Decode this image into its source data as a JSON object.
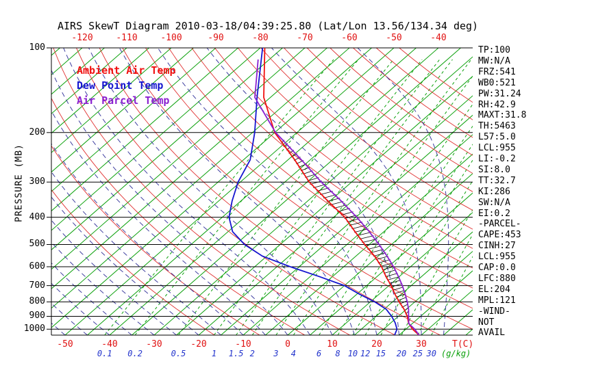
{
  "title": "AIRS SkewT Diagram 2010-03-18/04:39:25.80 (Lat/Lon 13.56/134.34 deg)",
  "legend": [
    {
      "label": "Ambient Air Temp",
      "color": "#f01010"
    },
    {
      "label": "Dew Point Temp",
      "color": "#1515cf"
    },
    {
      "label": "Air Parcel Temp",
      "color": "#8a1fd0"
    }
  ],
  "axes": {
    "left_label": "PRESSURE (MB)",
    "temp_unit_label": "T(C)",
    "mixing_unit_label": "(g/kg)"
  },
  "stats_panel": {
    "lines": [
      "TP:100",
      "MW:N/A",
      "FRZ:541",
      "WB0:521",
      "PW:31.24",
      "RH:42.9",
      "MAXT:31.8",
      "TH:5463",
      "L57:5.0",
      "LCL:955",
      "LI:-0.2",
      "SI:8.0",
      "TT:32.7",
      "KI:286",
      "SW:N/A",
      "EI:0.2",
      "-PARCEL-",
      "CAPE:453",
      "CINH:27",
      "LCL:955",
      "CAP:0.0",
      "LFC:880",
      "EL:204",
      "MPL:121",
      "-WIND-",
      "NOT",
      "AVAIL"
    ]
  },
  "chart_data": {
    "type": "line",
    "title": "AIRS SkewT Diagram 2010-03-18/04:39:25.80 (Lat/Lon 13.56/134.34 deg)",
    "projection": "skew-T log-P",
    "x_axis": {
      "label": "T(C)",
      "top_ticks_C": [
        -120,
        -110,
        -100,
        -90,
        -80,
        -70,
        -60,
        -50,
        -40
      ],
      "bottom_ticks_C": [
        -50,
        -40,
        -30,
        -20,
        -10,
        0,
        10,
        20,
        30
      ]
    },
    "y_axis": {
      "label": "PRESSURE (MB)",
      "scale": "log",
      "range_mb": [
        100,
        1050
      ],
      "ticks_mb": [
        100,
        200,
        300,
        400,
        500,
        600,
        700,
        800,
        900,
        1000
      ]
    },
    "mixing_ratio_ticks_gkg": [
      0.1,
      0.2,
      0.5,
      1,
      1.5,
      2,
      3,
      4,
      6,
      8,
      10,
      12,
      15,
      20,
      25,
      30
    ],
    "grid": {
      "isotherms": {
        "min_C": -160,
        "max_C": 45,
        "step_C": 5,
        "color": "#0aa00a",
        "style": "solid"
      },
      "dry_adiabats": {
        "min_theta_C": -20,
        "max_theta_C": 160,
        "step_C": 10,
        "color": "#e03030",
        "style": "solid"
      },
      "moist_adiabats": {
        "min_start_C": -60,
        "max_start_C": 35,
        "step_C": 5,
        "color": "#3f3fa0",
        "style": "dashed"
      },
      "mixing_ratio_lines": {
        "color": "#0aa00a",
        "style": "dashed"
      },
      "pressure_lines": {
        "color": "#000000"
      }
    },
    "series": [
      {
        "name": "Ambient Air Temp",
        "color": "#f01010",
        "points_p_T": [
          [
            1050,
            29.5
          ],
          [
            1000,
            26.5
          ],
          [
            950,
            24
          ],
          [
            900,
            22
          ],
          [
            850,
            19.5
          ],
          [
            800,
            16.5
          ],
          [
            750,
            13.5
          ],
          [
            700,
            10.5
          ],
          [
            650,
            7
          ],
          [
            600,
            3.5
          ],
          [
            550,
            -0.8
          ],
          [
            500,
            -6
          ],
          [
            450,
            -11.5
          ],
          [
            400,
            -17.5
          ],
          [
            350,
            -25.5
          ],
          [
            300,
            -34.5
          ],
          [
            250,
            -43.5
          ],
          [
            200,
            -55
          ],
          [
            150,
            -66.5
          ],
          [
            100,
            -79
          ]
        ]
      },
      {
        "name": "Dew Point Temp",
        "color": "#1515cf",
        "points_p_T": [
          [
            1050,
            24
          ],
          [
            1000,
            23
          ],
          [
            950,
            21
          ],
          [
            900,
            18.5
          ],
          [
            850,
            15.5
          ],
          [
            800,
            11
          ],
          [
            750,
            5.5
          ],
          [
            700,
            0
          ],
          [
            650,
            -8
          ],
          [
            600,
            -17
          ],
          [
            550,
            -26
          ],
          [
            500,
            -33
          ],
          [
            450,
            -39
          ],
          [
            400,
            -43.5
          ],
          [
            350,
            -47
          ],
          [
            300,
            -50.5
          ],
          [
            250,
            -53.5
          ],
          [
            200,
            -59.5
          ],
          [
            150,
            -68
          ],
          [
            100,
            -79.5
          ]
        ]
      },
      {
        "name": "Air Parcel Temp",
        "color": "#8a1fd0",
        "points_p_T": [
          [
            1050,
            29.5
          ],
          [
            1000,
            27
          ],
          [
            955,
            24.2
          ],
          [
            900,
            22.3
          ],
          [
            850,
            20.5
          ],
          [
            800,
            18.3
          ],
          [
            750,
            15.8
          ],
          [
            700,
            13
          ],
          [
            650,
            9.8
          ],
          [
            600,
            6.2
          ],
          [
            550,
            2
          ],
          [
            500,
            -2.8
          ],
          [
            450,
            -8.3
          ],
          [
            400,
            -14.8
          ],
          [
            350,
            -22.5
          ],
          [
            300,
            -31.8
          ],
          [
            250,
            -42
          ],
          [
            200,
            -54.8
          ],
          [
            150,
            -68.5
          ],
          [
            110,
            -77.5
          ]
        ]
      }
    ],
    "hatch": {
      "between": [
        "Ambient Air Temp",
        "Air Parcel Temp"
      ],
      "range_mb": [
        950,
        210
      ],
      "color": "#000000"
    }
  }
}
